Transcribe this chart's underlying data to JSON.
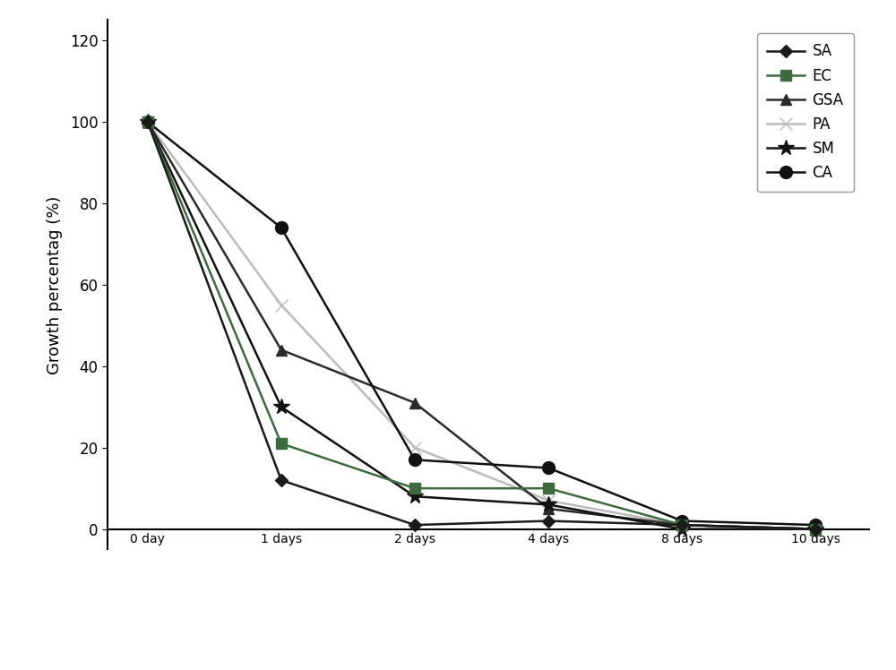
{
  "x_labels": [
    "0 day",
    "1 days",
    "2 days",
    "4 days",
    "8 days",
    "10 days"
  ],
  "x_positions": [
    0,
    1,
    2,
    3,
    4,
    5
  ],
  "series": [
    {
      "label": "SA",
      "values": [
        100,
        12,
        1,
        2,
        1,
        0
      ],
      "color": "#1a1a1a",
      "marker": "D",
      "marker_size": 7,
      "linewidth": 1.8,
      "zorder": 5
    },
    {
      "label": "EC",
      "values": [
        100,
        21,
        10,
        10,
        1,
        0
      ],
      "color": "#3d6b3d",
      "marker": "s",
      "marker_size": 9,
      "linewidth": 1.8,
      "zorder": 4
    },
    {
      "label": "GSA",
      "values": [
        100,
        44,
        31,
        5,
        1,
        0
      ],
      "color": "#2a2a2a",
      "marker": "^",
      "marker_size": 9,
      "linewidth": 1.8,
      "zorder": 3
    },
    {
      "label": "PA",
      "values": [
        100,
        55,
        20,
        7,
        1,
        0
      ],
      "color": "#bbbbbb",
      "marker": "x",
      "marker_size": 10,
      "linewidth": 1.8,
      "zorder": 2
    },
    {
      "label": "SM",
      "values": [
        100,
        30,
        8,
        6,
        0,
        0
      ],
      "color": "#111111",
      "marker": "*",
      "marker_size": 13,
      "linewidth": 1.8,
      "zorder": 3
    },
    {
      "label": "CA",
      "values": [
        100,
        74,
        17,
        15,
        2,
        1
      ],
      "color": "#111111",
      "marker": "o",
      "marker_size": 10,
      "linewidth": 1.8,
      "zorder": 3
    }
  ],
  "ylabel": "Growth percentag (%)",
  "ylim": [
    -5,
    125
  ],
  "yticks": [
    0,
    20,
    40,
    60,
    80,
    100,
    120
  ],
  "background_color": "#ffffff",
  "legend_loc": "upper right",
  "legend_fontsize": 12,
  "axis_fontsize": 13,
  "tick_fontsize": 12
}
